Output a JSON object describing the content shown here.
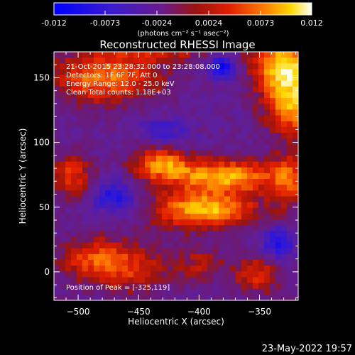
{
  "chart_data": {
    "type": "heatmap",
    "title": "Reconstructed RHESSI Image",
    "xlabel": "Heliocentric X (arcsec)",
    "ylabel": "Heliocentric Y (arcsec)",
    "xlim": [
      -520,
      -318
    ],
    "ylim": [
      -22,
      170
    ],
    "x_ticks": [
      -500,
      -450,
      -400,
      -350
    ],
    "y_ticks": [
      0,
      50,
      100,
      150
    ],
    "colorbar": {
      "ticks": [
        "-0.012",
        "-0.0073",
        "-0.0024",
        "0.0024",
        "0.0073",
        "0.012"
      ],
      "range": [
        -0.012,
        0.012
      ],
      "units_label": "(photons cm⁻² s⁻¹ asec⁻²)"
    },
    "info_lines": [
      "21-Oct-2015 23:28:32.000 to 23:28:08.000",
      "Detectors: 1F 6F 7F, Att 0",
      "Energy Range: 12.0 - 25.0 keV",
      "Clean    Total counts: 1.18E+03"
    ],
    "peak_text": "Position of Peak = [-325,119]",
    "peak_position": [
      -325,
      119
    ],
    "blobs": [
      {
        "x": -330,
        "y": 160,
        "sx": 18,
        "sy": 15,
        "a": 1.0
      },
      {
        "x": -322,
        "y": 128,
        "sx": 16,
        "sy": 16,
        "a": 0.85
      },
      {
        "x": -478,
        "y": 150,
        "sx": 32,
        "sy": 14,
        "a": 0.75
      },
      {
        "x": -435,
        "y": 175,
        "sx": 30,
        "sy": 8,
        "a": 0.55
      },
      {
        "x": -395,
        "y": 48,
        "sx": 30,
        "sy": 10,
        "a": 0.95
      },
      {
        "x": -380,
        "y": 74,
        "sx": 36,
        "sy": 9,
        "a": 0.9
      },
      {
        "x": -432,
        "y": 84,
        "sx": 16,
        "sy": 8,
        "a": 0.7
      },
      {
        "x": -505,
        "y": 75,
        "sx": 12,
        "sy": 12,
        "a": 0.55
      },
      {
        "x": -488,
        "y": 10,
        "sx": 20,
        "sy": 12,
        "a": 0.55
      },
      {
        "x": -455,
        "y": 2,
        "sx": 22,
        "sy": 14,
        "a": 0.45
      },
      {
        "x": -325,
        "y": 70,
        "sx": 10,
        "sy": 16,
        "a": 0.5
      },
      {
        "x": -352,
        "y": -2,
        "sx": 14,
        "sy": 10,
        "a": 0.55
      },
      {
        "x": -398,
        "y": 6,
        "sx": 14,
        "sy": 10,
        "a": 0.35
      },
      {
        "x": -380,
        "y": 158,
        "sx": 8,
        "sy": 6,
        "a": -0.75
      },
      {
        "x": -470,
        "y": 58,
        "sx": 12,
        "sy": 9,
        "a": -0.55
      },
      {
        "x": -335,
        "y": 22,
        "sx": 10,
        "sy": 9,
        "a": -0.55
      },
      {
        "x": -430,
        "y": 110,
        "sx": 14,
        "sy": 7,
        "a": -0.35
      }
    ]
  },
  "footer": {
    "date": "23-May-2022 19:57"
  }
}
